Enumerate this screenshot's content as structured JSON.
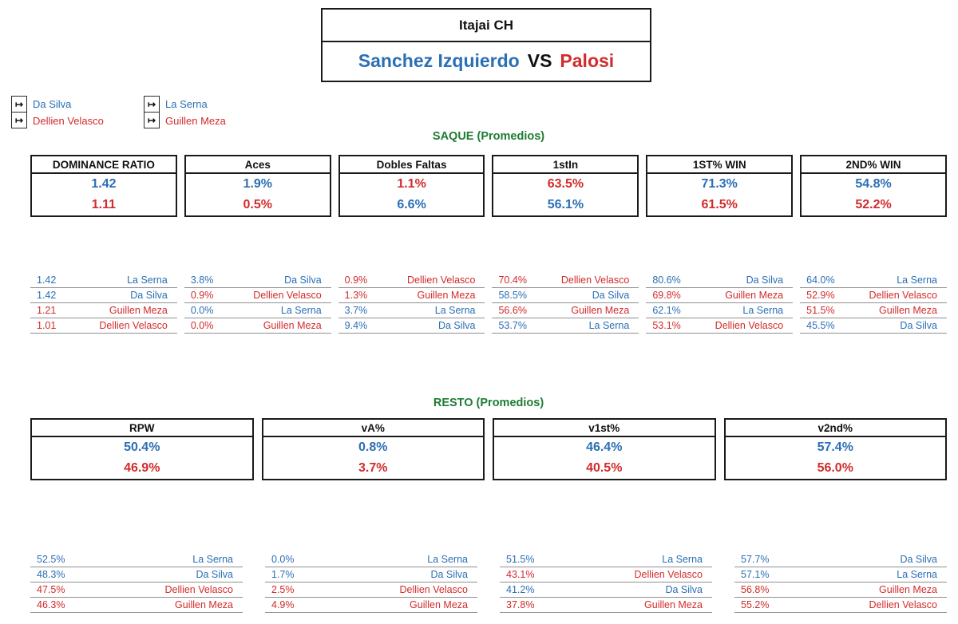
{
  "colors": {
    "blue": "#2B6FB5",
    "red": "#D22B2B",
    "green": "#1E7C34"
  },
  "title": {
    "tournament": "Itajai CH",
    "player1": "Sanchez Izquierdo",
    "vs": "VS",
    "player2": "Palosi"
  },
  "legend": {
    "arrow_icon": "↦",
    "groups": [
      {
        "items": [
          {
            "label": "Da Silva",
            "color": "blue"
          },
          {
            "label": "Dellien Velasco",
            "color": "red"
          }
        ]
      },
      {
        "items": [
          {
            "label": "La Serna",
            "color": "blue"
          },
          {
            "label": "Guillen Meza",
            "color": "red"
          }
        ]
      }
    ]
  },
  "sections": [
    {
      "heading": "SAQUE (Promedios)",
      "stats": [
        {
          "label": "DOMINANCE RATIO",
          "values": [
            {
              "v": "1.42",
              "c": "blue"
            },
            {
              "v": "1.11",
              "c": "red"
            }
          ],
          "ranking": [
            {
              "v": "1.42",
              "n": "La Serna",
              "c": "blue"
            },
            {
              "v": "1.42",
              "n": "Da Silva",
              "c": "blue"
            },
            {
              "v": "1.21",
              "n": "Guillen Meza",
              "c": "red"
            },
            {
              "v": "1.01",
              "n": "Dellien Velasco",
              "c": "red"
            }
          ]
        },
        {
          "label": "Aces",
          "values": [
            {
              "v": "1.9%",
              "c": "blue"
            },
            {
              "v": "0.5%",
              "c": "red"
            }
          ],
          "ranking": [
            {
              "v": "3.8%",
              "n": "Da Silva",
              "c": "blue"
            },
            {
              "v": "0.9%",
              "n": "Dellien Velasco",
              "c": "red"
            },
            {
              "v": "0.0%",
              "n": "La Serna",
              "c": "blue"
            },
            {
              "v": "0.0%",
              "n": "Guillen Meza",
              "c": "red"
            }
          ]
        },
        {
          "label": "Dobles Faltas",
          "values": [
            {
              "v": "1.1%",
              "c": "red"
            },
            {
              "v": "6.6%",
              "c": "blue"
            }
          ],
          "ranking": [
            {
              "v": "0.9%",
              "n": "Dellien Velasco",
              "c": "red"
            },
            {
              "v": "1.3%",
              "n": "Guillen Meza",
              "c": "red"
            },
            {
              "v": "3.7%",
              "n": "La Serna",
              "c": "blue"
            },
            {
              "v": "9.4%",
              "n": "Da Silva",
              "c": "blue"
            }
          ]
        },
        {
          "label": "1stIn",
          "values": [
            {
              "v": "63.5%",
              "c": "red"
            },
            {
              "v": "56.1%",
              "c": "blue"
            }
          ],
          "ranking": [
            {
              "v": "70.4%",
              "n": "Dellien Velasco",
              "c": "red"
            },
            {
              "v": "58.5%",
              "n": "Da Silva",
              "c": "blue"
            },
            {
              "v": "56.6%",
              "n": "Guillen Meza",
              "c": "red"
            },
            {
              "v": "53.7%",
              "n": "La Serna",
              "c": "blue"
            }
          ]
        },
        {
          "label": "1ST% WIN",
          "values": [
            {
              "v": "71.3%",
              "c": "blue"
            },
            {
              "v": "61.5%",
              "c": "red"
            }
          ],
          "ranking": [
            {
              "v": "80.6%",
              "n": "Da Silva",
              "c": "blue"
            },
            {
              "v": "69.8%",
              "n": "Guillen Meza",
              "c": "red"
            },
            {
              "v": "62.1%",
              "n": "La Serna",
              "c": "blue"
            },
            {
              "v": "53.1%",
              "n": "Dellien Velasco",
              "c": "red"
            }
          ]
        },
        {
          "label": "2ND% WIN",
          "values": [
            {
              "v": "54.8%",
              "c": "blue"
            },
            {
              "v": "52.2%",
              "c": "red"
            }
          ],
          "ranking": [
            {
              "v": "64.0%",
              "n": "La Serna",
              "c": "blue"
            },
            {
              "v": "52.9%",
              "n": "Dellien Velasco",
              "c": "red"
            },
            {
              "v": "51.5%",
              "n": "Guillen Meza",
              "c": "red"
            },
            {
              "v": "45.5%",
              "n": "Da Silva",
              "c": "blue"
            }
          ]
        }
      ]
    },
    {
      "heading": "RESTO (Promedios)",
      "stats": [
        {
          "label": "RPW",
          "values": [
            {
              "v": "50.4%",
              "c": "blue"
            },
            {
              "v": "46.9%",
              "c": "red"
            }
          ],
          "ranking": [
            {
              "v": "52.5%",
              "n": "La Serna",
              "c": "blue"
            },
            {
              "v": "48.3%",
              "n": "Da Silva",
              "c": "blue"
            },
            {
              "v": "47.5%",
              "n": "Dellien Velasco",
              "c": "red"
            },
            {
              "v": "46.3%",
              "n": "Guillen Meza",
              "c": "red"
            }
          ]
        },
        {
          "label": "vA%",
          "values": [
            {
              "v": "0.8%",
              "c": "blue"
            },
            {
              "v": "3.7%",
              "c": "red"
            }
          ],
          "ranking": [
            {
              "v": "0.0%",
              "n": "La Serna",
              "c": "blue"
            },
            {
              "v": "1.7%",
              "n": "Da Silva",
              "c": "blue"
            },
            {
              "v": "2.5%",
              "n": "Dellien Velasco",
              "c": "red"
            },
            {
              "v": "4.9%",
              "n": "Guillen Meza",
              "c": "red"
            }
          ]
        },
        {
          "label": "v1st%",
          "values": [
            {
              "v": "46.4%",
              "c": "blue"
            },
            {
              "v": "40.5%",
              "c": "red"
            }
          ],
          "ranking": [
            {
              "v": "51.5%",
              "n": "La Serna",
              "c": "blue"
            },
            {
              "v": "43.1%",
              "n": "Dellien Velasco",
              "c": "red"
            },
            {
              "v": "41.2%",
              "n": "Da Silva",
              "c": "blue"
            },
            {
              "v": "37.8%",
              "n": "Guillen Meza",
              "c": "red"
            }
          ]
        },
        {
          "label": "v2nd%",
          "values": [
            {
              "v": "57.4%",
              "c": "blue"
            },
            {
              "v": "56.0%",
              "c": "red"
            }
          ],
          "ranking": [
            {
              "v": "57.7%",
              "n": "Da Silva",
              "c": "blue"
            },
            {
              "v": "57.1%",
              "n": "La Serna",
              "c": "blue"
            },
            {
              "v": "56.8%",
              "n": "Guillen Meza",
              "c": "red"
            },
            {
              "v": "55.2%",
              "n": "Dellien Velasco",
              "c": "red"
            }
          ]
        }
      ]
    }
  ]
}
